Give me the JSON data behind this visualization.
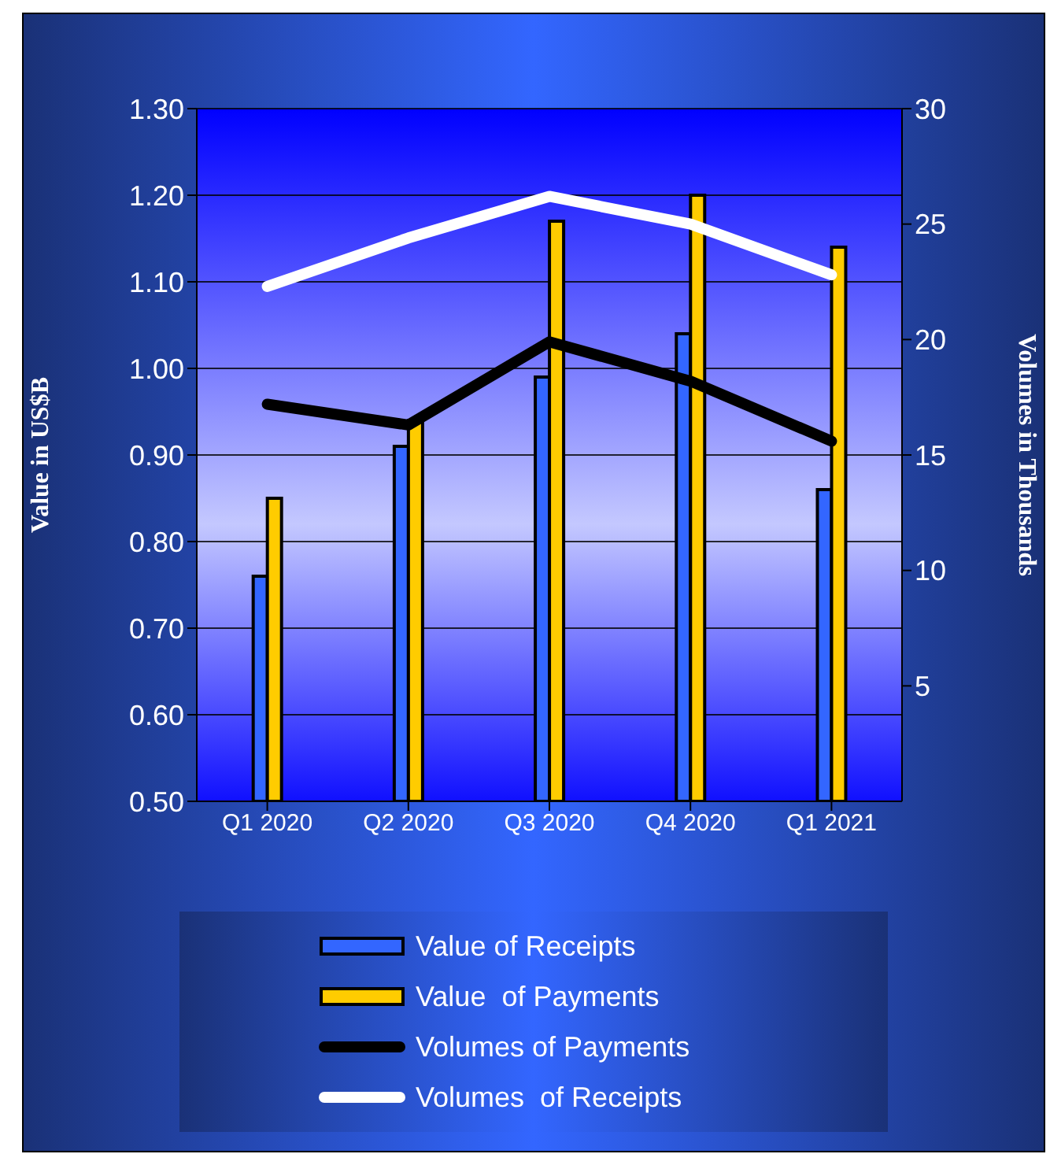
{
  "chart_data": {
    "type": "bar",
    "ylabel": "Value in US$B",
    "y2label": "Volumes in Thousands",
    "categories": [
      "Q1 2020",
      "Q2 2020",
      "Q3 2020",
      "Q4 2020",
      "Q1 2021"
    ],
    "series": [
      {
        "name": "Value of Receipts",
        "color": "#3366ff",
        "values": [
          0.76,
          0.91,
          0.99,
          1.04,
          0.86
        ]
      },
      {
        "name": "Value  of Payments",
        "color": "#ffcc00",
        "values": [
          0.85,
          0.94,
          1.17,
          1.2,
          1.14
        ]
      },
      {
        "name": "Volumes of Payments",
        "type": "line",
        "axis": "y2",
        "color": "#000000",
        "values": [
          17.2,
          16.3,
          19.9,
          18.2,
          15.6
        ]
      },
      {
        "name": "Volumes  of Receipts",
        "type": "line",
        "axis": "y2",
        "color": "#ffffff",
        "values": [
          22.3,
          24.4,
          26.2,
          25.0,
          22.8
        ]
      }
    ],
    "ylim": [
      0.5,
      1.3
    ],
    "yticks": [
      {
        "value": 0.5,
        "label": "0.50"
      },
      {
        "value": 0.6,
        "label": "0.60"
      },
      {
        "value": 0.7,
        "label": "0.70"
      },
      {
        "value": 0.8,
        "label": "0.80"
      },
      {
        "value": 0.9,
        "label": "0.90"
      },
      {
        "value": 1.0,
        "label": "1.00"
      },
      {
        "value": 1.1,
        "label": "1.10"
      },
      {
        "value": 1.2,
        "label": "1.20"
      },
      {
        "value": 1.3,
        "label": "1.30"
      }
    ],
    "y2lim": [
      0,
      30
    ],
    "y2ticks": [
      5,
      10,
      15,
      20,
      25,
      30
    ],
    "grid": "y",
    "legend": "bottom",
    "marker": "none",
    "line_style": "solid"
  }
}
